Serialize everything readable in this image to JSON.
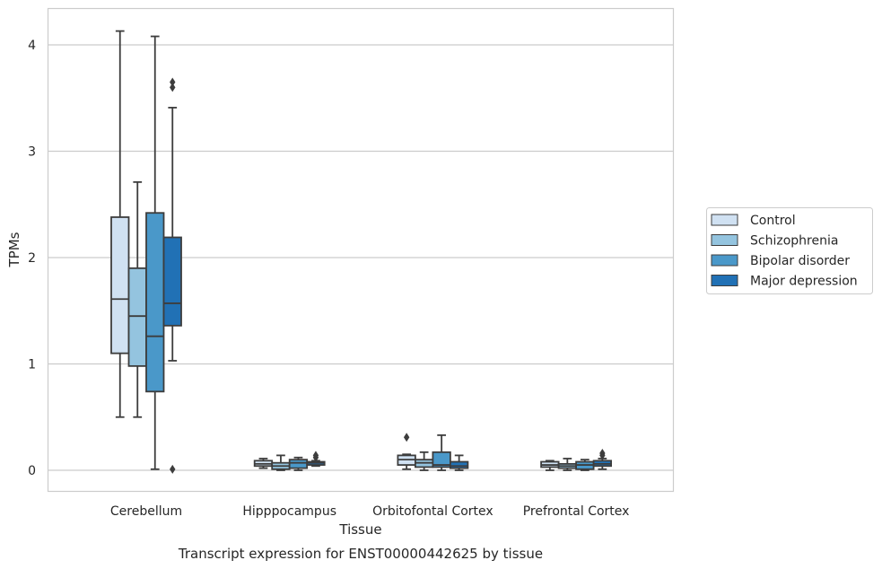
{
  "caption": "Transcript expression for ENST00000442625 by tissue",
  "chart_data": {
    "type": "box",
    "xlabel": "Tissue",
    "ylabel": "TPMs",
    "ylim": [
      -0.2,
      4.35
    ],
    "yticks": [
      0,
      1,
      2,
      3,
      4
    ],
    "grid": "horizontal",
    "legend_position": "right",
    "categories": [
      "Cerebellum",
      "Hipppocampus",
      "Orbitofontal Cortex",
      "Prefrontal Cortex"
    ],
    "series": [
      {
        "name": "Control",
        "color": "#d0e1f2",
        "boxes": [
          {
            "whislo": 0.5,
            "q1": 1.1,
            "med": 1.61,
            "q3": 2.38,
            "whishi": 4.13,
            "fliers": []
          },
          {
            "whislo": 0.02,
            "q1": 0.04,
            "med": 0.06,
            "q3": 0.09,
            "whishi": 0.11,
            "fliers": []
          },
          {
            "whislo": 0.01,
            "q1": 0.05,
            "med": 0.1,
            "q3": 0.14,
            "whishi": 0.15,
            "fliers": [
              0.31
            ]
          },
          {
            "whislo": 0.0,
            "q1": 0.03,
            "med": 0.05,
            "q3": 0.08,
            "whishi": 0.09,
            "fliers": []
          }
        ]
      },
      {
        "name": "Schizophrenia",
        "color": "#94c4df",
        "boxes": [
          {
            "whislo": 0.5,
            "q1": 0.98,
            "med": 1.45,
            "q3": 1.9,
            "whishi": 2.71,
            "fliers": []
          },
          {
            "whislo": 0.0,
            "q1": 0.01,
            "med": 0.04,
            "q3": 0.07,
            "whishi": 0.14,
            "fliers": []
          },
          {
            "whislo": 0.0,
            "q1": 0.03,
            "med": 0.07,
            "q3": 0.1,
            "whishi": 0.17,
            "fliers": []
          },
          {
            "whislo": 0.0,
            "q1": 0.02,
            "med": 0.04,
            "q3": 0.06,
            "whishi": 0.11,
            "fliers": []
          }
        ]
      },
      {
        "name": "Bipolar disorder",
        "color": "#4a98c9",
        "boxes": [
          {
            "whislo": 0.01,
            "q1": 0.74,
            "med": 1.26,
            "q3": 2.42,
            "whishi": 4.08,
            "fliers": []
          },
          {
            "whislo": 0.0,
            "q1": 0.02,
            "med": 0.07,
            "q3": 0.1,
            "whishi": 0.12,
            "fliers": []
          },
          {
            "whislo": 0.0,
            "q1": 0.03,
            "med": 0.05,
            "q3": 0.17,
            "whishi": 0.33,
            "fliers": []
          },
          {
            "whislo": 0.0,
            "q1": 0.01,
            "med": 0.05,
            "q3": 0.08,
            "whishi": 0.1,
            "fliers": []
          }
        ]
      },
      {
        "name": "Major depression",
        "color": "#2171b5",
        "boxes": [
          {
            "whislo": 1.03,
            "q1": 1.36,
            "med": 1.57,
            "q3": 2.19,
            "whishi": 3.41,
            "fliers": [
              3.6,
              3.65,
              0.01
            ]
          },
          {
            "whislo": 0.04,
            "q1": 0.05,
            "med": 0.07,
            "q3": 0.08,
            "whishi": 0.09,
            "fliers": [
              0.12,
              0.14
            ]
          },
          {
            "whislo": 0.0,
            "q1": 0.02,
            "med": 0.04,
            "q3": 0.08,
            "whishi": 0.14,
            "fliers": []
          },
          {
            "whislo": 0.01,
            "q1": 0.04,
            "med": 0.06,
            "q3": 0.09,
            "whishi": 0.11,
            "fliers": [
              0.14,
              0.16
            ]
          }
        ]
      }
    ]
  }
}
